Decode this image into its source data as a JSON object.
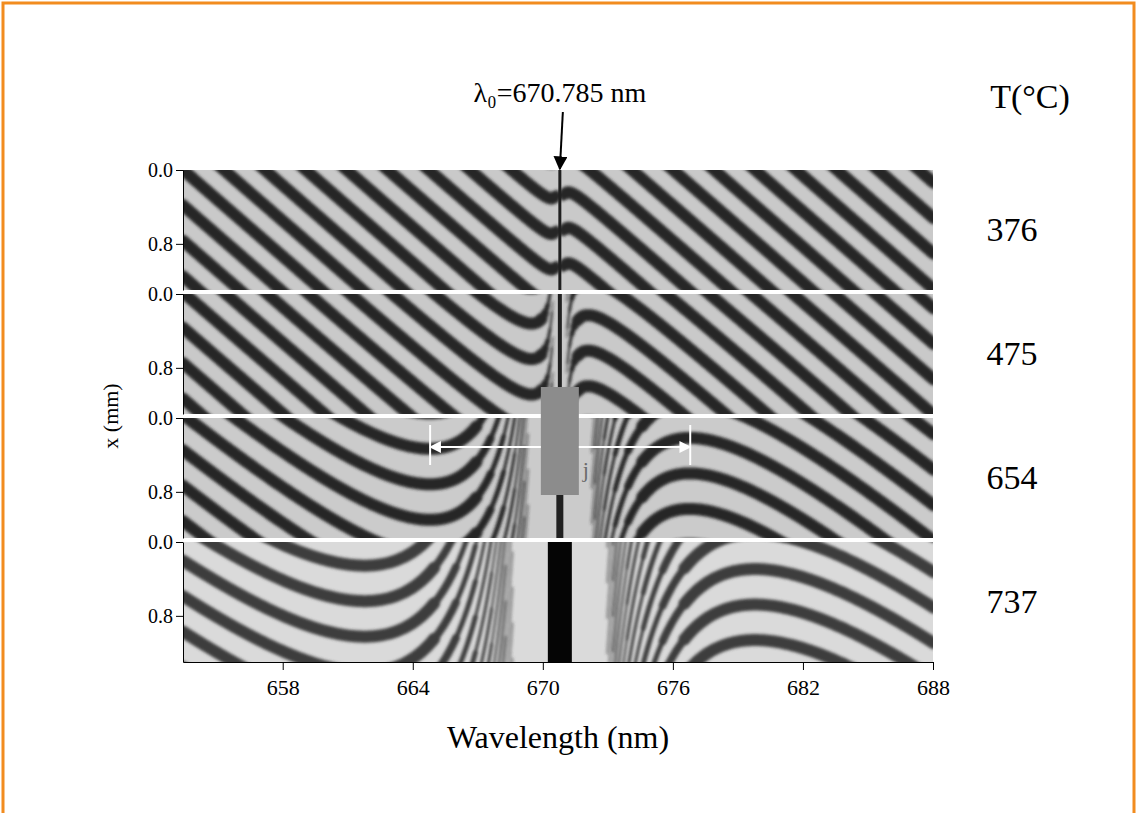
{
  "chart_data": {
    "type": "image",
    "annotation": "λ₀=670.785 nm",
    "annotation_x": 670.785,
    "x_label": "Wavelength (nm)",
    "y_label": "x (mm)",
    "xlim": [
      653.4,
      688
    ],
    "xticks": [
      658,
      664,
      670,
      676,
      682,
      688
    ],
    "ylim": [
      0,
      1.3
    ],
    "yticks": [
      {
        "value": 0,
        "label": "0.0"
      },
      {
        "value": 0.8,
        "label": "0.8"
      }
    ],
    "panel_title": "T(°C)",
    "panels": [
      376,
      475,
      654,
      737
    ],
    "span": {
      "label": "j",
      "x": [
        664.8,
        676.8
      ]
    }
  }
}
